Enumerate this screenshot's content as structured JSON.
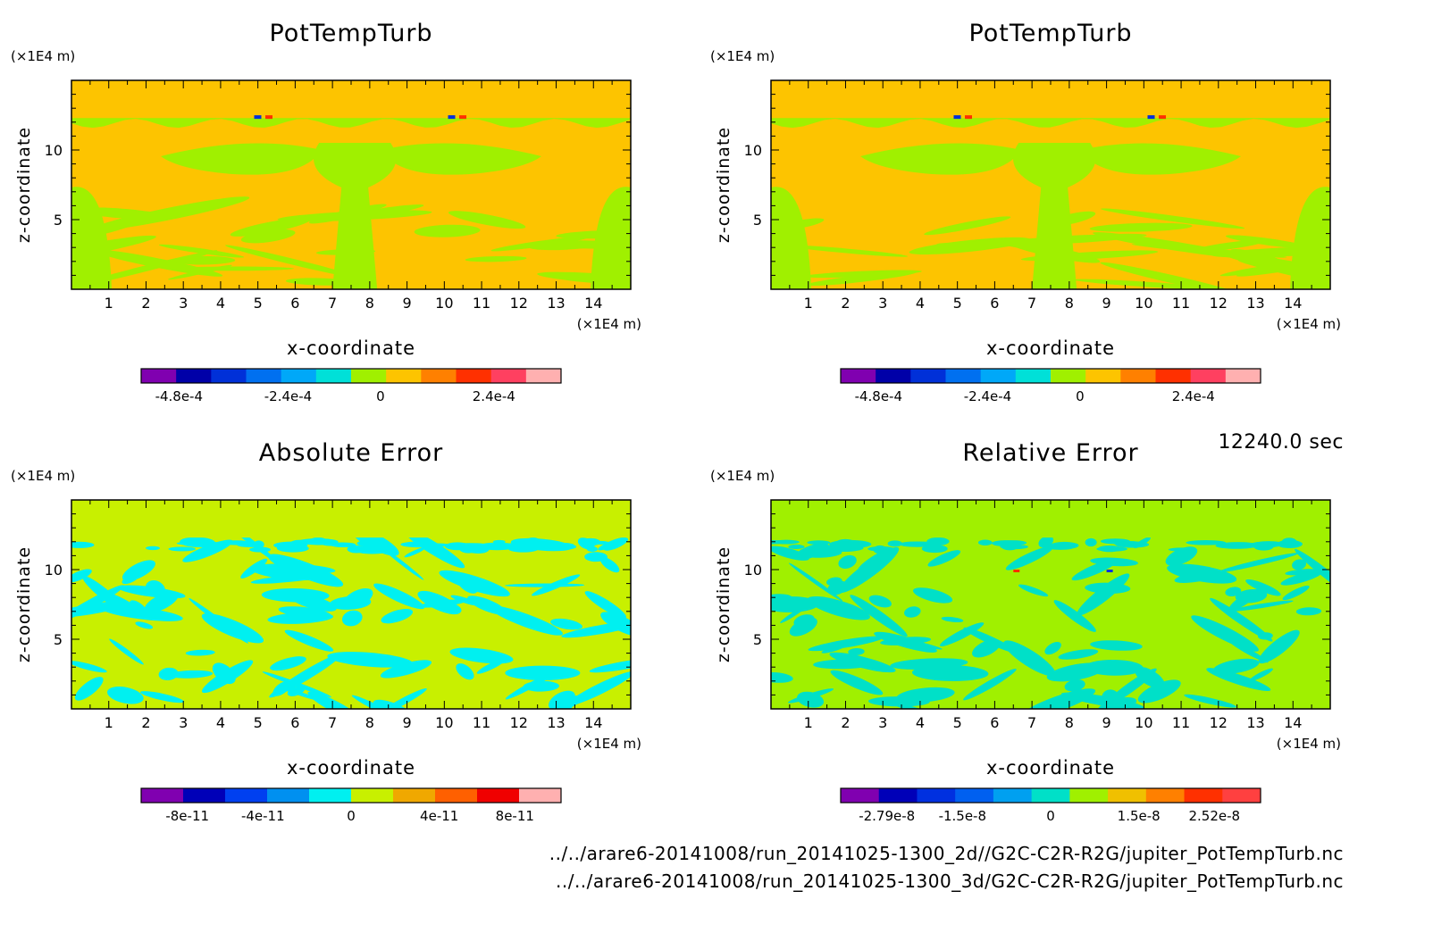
{
  "time_label": "12240.0 sec",
  "footer": {
    "line1": "../../arare6-20141008/run_20141025-1300_2d//G2C-C2R-R2G/jupiter_PotTempTurb.nc",
    "line2": "../../arare6-20141008/run_20141025-1300_3d/G2C-C2R-R2G/jupiter_PotTempTurb.nc"
  },
  "chart_data": [
    {
      "type": "heatmap",
      "title": "PotTempTurb",
      "xlabel": "x-coordinate",
      "ylabel": "z-coordinate",
      "x_unit": "(×1E4 m)",
      "y_unit": "(×1E4 m)",
      "xlim": [
        0,
        15
      ],
      "ylim": [
        0,
        15
      ],
      "x_ticks": [
        1,
        2,
        3,
        4,
        5,
        6,
        7,
        8,
        9,
        10,
        11,
        12,
        13,
        14
      ],
      "x_tick_labels": [
        "1",
        "2",
        "3",
        "4",
        "5",
        "6",
        "7",
        "8",
        "9",
        "10",
        "11",
        "12",
        "13",
        "14"
      ],
      "y_ticks": [
        5,
        10
      ],
      "y_tick_labels": [
        "5",
        "10"
      ],
      "background": "#fdc400",
      "pattern": "potential",
      "colorbar": {
        "colors": [
          "#8000b0",
          "#0000a8",
          "#0030d8",
          "#0070f0",
          "#00a8f8",
          "#00e0d8",
          "#a0f000",
          "#fdc400",
          "#ff8000",
          "#ff3000",
          "#ff4060",
          "#ffb0b0"
        ],
        "tick_labels": [
          "-4.8e-4",
          "-2.4e-4",
          "0",
          "2.4e-4"
        ]
      }
    },
    {
      "type": "heatmap",
      "title": "PotTempTurb",
      "xlabel": "x-coordinate",
      "ylabel": "z-coordinate",
      "x_unit": "(×1E4 m)",
      "y_unit": "(×1E4 m)",
      "xlim": [
        0,
        15
      ],
      "ylim": [
        0,
        15
      ],
      "x_ticks": [
        1,
        2,
        3,
        4,
        5,
        6,
        7,
        8,
        9,
        10,
        11,
        12,
        13,
        14
      ],
      "x_tick_labels": [
        "1",
        "2",
        "3",
        "4",
        "5",
        "6",
        "7",
        "8",
        "9",
        "10",
        "11",
        "12",
        "13",
        "14"
      ],
      "y_ticks": [
        5,
        10
      ],
      "y_tick_labels": [
        "5",
        "10"
      ],
      "background": "#fdc400",
      "pattern": "potential",
      "colorbar": {
        "colors": [
          "#8000b0",
          "#0000a8",
          "#0030d8",
          "#0070f0",
          "#00a8f8",
          "#00e0d8",
          "#a0f000",
          "#fdc400",
          "#ff8000",
          "#ff3000",
          "#ff4060",
          "#ffb0b0"
        ],
        "tick_labels": [
          "-4.8e-4",
          "-2.4e-4",
          "0",
          "2.4e-4"
        ]
      }
    },
    {
      "type": "heatmap",
      "title": "Absolute Error",
      "xlabel": "x-coordinate",
      "ylabel": "z-coordinate",
      "x_unit": "(×1E4 m)",
      "y_unit": "(×1E4 m)",
      "xlim": [
        0,
        15
      ],
      "ylim": [
        0,
        15
      ],
      "x_ticks": [
        1,
        2,
        3,
        4,
        5,
        6,
        7,
        8,
        9,
        10,
        11,
        12,
        13,
        14
      ],
      "x_tick_labels": [
        "1",
        "2",
        "3",
        "4",
        "5",
        "6",
        "7",
        "8",
        "9",
        "10",
        "11",
        "12",
        "13",
        "14"
      ],
      "y_ticks": [
        5,
        10
      ],
      "y_tick_labels": [
        "5",
        "10"
      ],
      "background": "#c8f000",
      "pattern": "abs",
      "colorbar": {
        "colors": [
          "#8000b0",
          "#0000b8",
          "#0040f0",
          "#0090f0",
          "#00f0f0",
          "#c8f000",
          "#f0a800",
          "#ff6000",
          "#f00000",
          "#ffb0b0"
        ],
        "tick_labels": [
          "-8e-11",
          "-4e-11",
          "0",
          "4e-11",
          "8e-11"
        ]
      }
    },
    {
      "type": "heatmap",
      "title": "Relative Error",
      "xlabel": "x-coordinate",
      "ylabel": "z-coordinate",
      "x_unit": "(×1E4 m)",
      "y_unit": "(×1E4 m)",
      "xlim": [
        0,
        15
      ],
      "ylim": [
        0,
        15
      ],
      "x_ticks": [
        1,
        2,
        3,
        4,
        5,
        6,
        7,
        8,
        9,
        10,
        11,
        12,
        13,
        14
      ],
      "x_tick_labels": [
        "1",
        "2",
        "3",
        "4",
        "5",
        "6",
        "7",
        "8",
        "9",
        "10",
        "11",
        "12",
        "13",
        "14"
      ],
      "y_ticks": [
        5,
        10
      ],
      "y_tick_labels": [
        "5",
        "10"
      ],
      "background": "#a0f000",
      "pattern": "rel",
      "colorbar": {
        "colors": [
          "#8000b0",
          "#0000b8",
          "#0030e0",
          "#0060f0",
          "#00a0f0",
          "#00e0c8",
          "#a0f000",
          "#f0c000",
          "#ff8000",
          "#ff3000",
          "#ff4040"
        ],
        "tick_labels": [
          "-2.79e-8",
          "-1.5e-8",
          "0",
          "1.5e-8",
          "2.52e-8"
        ]
      }
    }
  ]
}
